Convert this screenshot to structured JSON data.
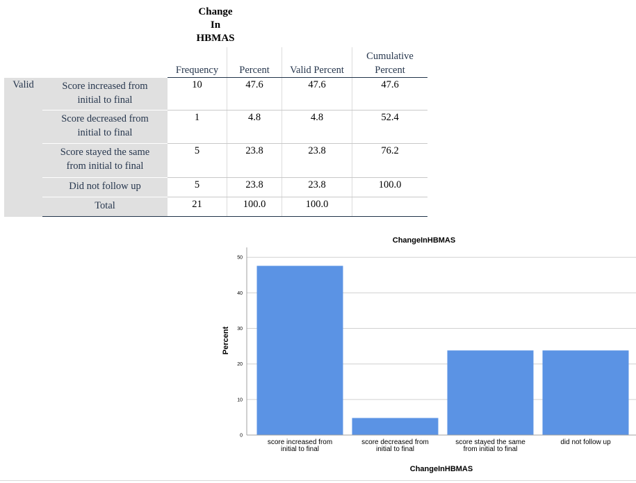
{
  "table": {
    "title_lines": [
      "Change",
      "In",
      "HBMAS"
    ],
    "headers": {
      "frequency": "Frequency",
      "percent": "Percent",
      "valid_percent": "Valid Percent",
      "cumulative_line1": "Cumulative",
      "cumulative_line2": "Percent"
    },
    "group_label": "Valid",
    "rows": [
      {
        "label_line1": "Score increased from",
        "label_line2": "initial to final",
        "frequency": "10",
        "percent": "47.6",
        "valid_percent": "47.6",
        "cumulative": "47.6"
      },
      {
        "label_line1": "Score decreased from",
        "label_line2": "initial to final",
        "frequency": "1",
        "percent": "4.8",
        "valid_percent": "4.8",
        "cumulative": "52.4"
      },
      {
        "label_line1": "Score stayed the same",
        "label_line2": "from initial to final",
        "frequency": "5",
        "percent": "23.8",
        "valid_percent": "23.8",
        "cumulative": "76.2"
      },
      {
        "label_line1": "Did not follow up",
        "label_line2": "",
        "frequency": "5",
        "percent": "23.8",
        "valid_percent": "23.8",
        "cumulative": "100.0"
      },
      {
        "label_line1": "Total",
        "label_line2": "",
        "frequency": "21",
        "percent": "100.0",
        "valid_percent": "100.0",
        "cumulative": ""
      }
    ]
  },
  "chart_data": {
    "type": "bar",
    "title": "ChangeInHBMAS",
    "xlabel": "ChangeInHBMAS",
    "ylabel": "Percent",
    "ylim": [
      0,
      52
    ],
    "yticks": [
      0,
      10,
      20,
      30,
      40,
      50
    ],
    "grid": true,
    "categories": [
      [
        "score increased from",
        "initial to final"
      ],
      [
        "score decreased from",
        "initial to final"
      ],
      [
        "score stayed the same",
        "from initial to final"
      ],
      [
        "did not follow up"
      ]
    ],
    "values": [
      47.6,
      4.8,
      23.8,
      23.8
    ],
    "bar_color": "#5b93e4",
    "grid_color": "#d0d0d0"
  }
}
